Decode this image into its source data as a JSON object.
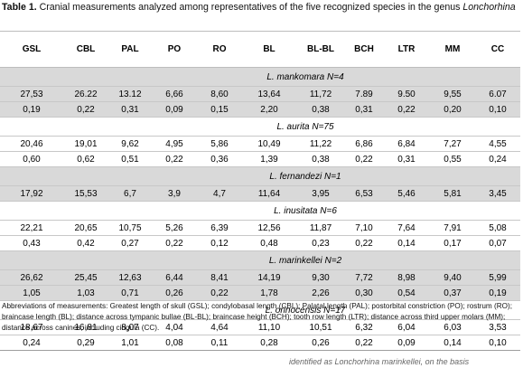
{
  "caption": {
    "label": "Table 1.",
    "text": " Cranial measurements analyzed among representatives of the five recognized species in the genus ",
    "genus": "Lonchorhina"
  },
  "headers": [
    "GSL",
    "CBL",
    "PAL",
    "PO",
    "RO",
    "BL",
    "BL-BL",
    "BCH",
    "LTR",
    "MM",
    "CC"
  ],
  "groups": [
    {
      "species": "L. mankomara N=4",
      "shaded": true,
      "mean": [
        "27,53",
        "26.22",
        "13.12",
        "6,66",
        "8,60",
        "13,64",
        "11,72",
        "7.89",
        "9.50",
        "9,55",
        "6.07"
      ],
      "sd": [
        "0,19",
        "0,22",
        "0,31",
        "0,09",
        "0,15",
        "2,20",
        "0,38",
        "0,31",
        "0,22",
        "0,20",
        "0,10"
      ]
    },
    {
      "species": "L. aurita N=75",
      "shaded": false,
      "mean": [
        "20,46",
        "19,01",
        "9,62",
        "4,95",
        "5,86",
        "10,49",
        "11,22",
        "6,86",
        "6,84",
        "7,27",
        "4,55"
      ],
      "sd": [
        "0,60",
        "0,62",
        "0,51",
        "0,22",
        "0,36",
        "1,39",
        "0,38",
        "0,22",
        "0,31",
        "0,55",
        "0,24"
      ]
    },
    {
      "species": "L. fernandezi N=1",
      "shaded": true,
      "mean": [
        "17,92",
        "15,53",
        "6,7",
        "3,9",
        "4,7",
        "11,64",
        "3,95",
        "6,53",
        "5,46",
        "5,81",
        "3,45"
      ],
      "sd": null
    },
    {
      "species": "L. inusitata N=6",
      "shaded": false,
      "mean": [
        "22,21",
        "20,65",
        "10,75",
        "5,26",
        "6,39",
        "12,56",
        "11,87",
        "7,10",
        "7,64",
        "7,91",
        "5,08"
      ],
      "sd": [
        "0,43",
        "0,42",
        "0,27",
        "0,22",
        "0,12",
        "0,48",
        "0,23",
        "0,22",
        "0,14",
        "0,17",
        "0,07"
      ]
    },
    {
      "species": "L. marinkellei N=2",
      "shaded": true,
      "mean": [
        "26,62",
        "25,45",
        "12,63",
        "6,44",
        "8,41",
        "14,19",
        "9,30",
        "7,72",
        "8,98",
        "9,40",
        "5,99"
      ],
      "sd": [
        "1,05",
        "1,03",
        "0,71",
        "0,26",
        "0,22",
        "1,78",
        "2,26",
        "0,30",
        "0,54",
        "0,37",
        "0,19"
      ]
    },
    {
      "species": "L. orinocensis N=17",
      "shaded": false,
      "mean": [
        "18,67",
        "16,81",
        "8,07",
        "4,04",
        "4,64",
        "11,10",
        "10,51",
        "6,32",
        "6,04",
        "6,03",
        "3,53"
      ],
      "sd": [
        "0,24",
        "0,29",
        "1,01",
        "0,08",
        "0,11",
        "0,28",
        "0,26",
        "0,22",
        "0,09",
        "0,14",
        "0,10"
      ]
    }
  ],
  "abbreviations": "Abbreviations of measurements: Greatest length of skull (GSL); condylobasal length (CBL); Palatal length (PAL); postorbital constriction (PO); rostrum (RO); braincase length (BL); distance across tympanic bullae (BL-BL); braincase height (BCH); tooth row length (LTR); distance across third upper molars (MM); distance across canines, including cingula (CC).",
  "footnote": "identified as Lonchorhina marinkellei, on the basis"
}
